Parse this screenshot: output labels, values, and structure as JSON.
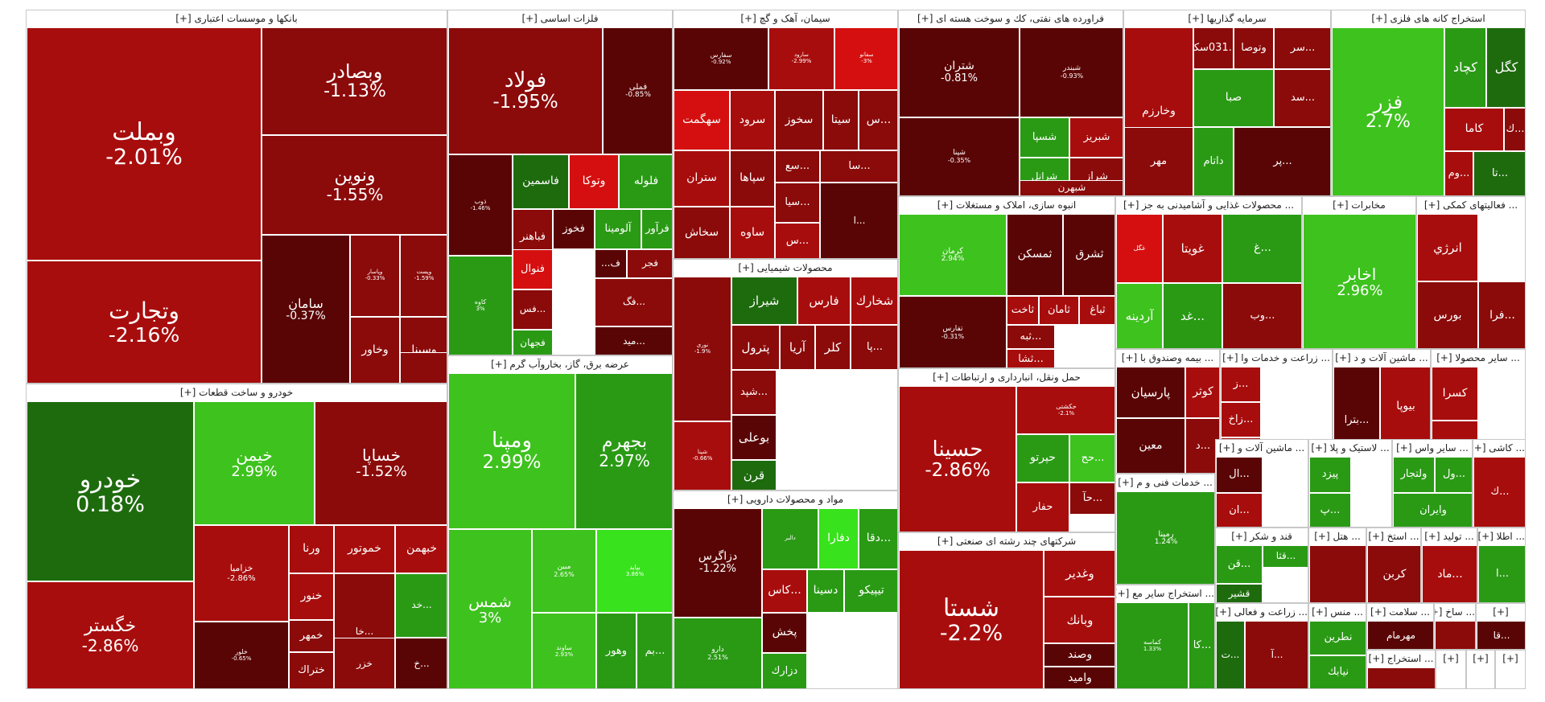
{
  "chart_data": {
    "type": "treemap",
    "colors": {
      "down_strong": "#8b0a0a",
      "down_mid": "#a80d0d",
      "down_dark": "#5a0505",
      "down_bright": "#d50f0f",
      "up_dark": "#1e6b0e",
      "up_mid": "#2a9a15",
      "up_bright": "#3ec21e",
      "up_neon": "#38e21c"
    },
    "sectors": [
      {
        "name": "بانکها و موسسات اعتباری [+]",
        "tiles": [
          {
            "symbol": "وبملت",
            "change": "-2.01%"
          },
          {
            "symbol": "وتجارت",
            "change": "-2.16%"
          },
          {
            "symbol": "وبصادر",
            "change": "-1.13%"
          },
          {
            "symbol": "ونوين",
            "change": "-1.55%"
          },
          {
            "symbol": "سامان",
            "change": "-0.37%"
          },
          {
            "symbol": "وپاسار",
            "change": "-0.33%"
          },
          {
            "symbol": "وپست",
            "change": "-1.59%"
          },
          {
            "symbol": "وخاور",
            "change": ""
          },
          {
            "symbol": "وسينا",
            "change": ""
          },
          {
            "symbol": "",
            "change": ""
          }
        ]
      },
      {
        "name": "فلزات اساسی [+]",
        "tiles": [
          {
            "symbol": "فولاد",
            "change": "-1.95%"
          },
          {
            "symbol": "فملی",
            "change": "-0.85%"
          },
          {
            "symbol": "ذوب",
            "change": "-1.46%"
          },
          {
            "symbol": "فاسمين",
            "change": ""
          },
          {
            "symbol": "وتوكا",
            "change": ""
          },
          {
            "symbol": "فلوله",
            "change": ""
          },
          {
            "symbol": "فخوز",
            "change": ""
          },
          {
            "symbol": "آلومينا",
            "change": ""
          },
          {
            "symbol": "فرآور",
            "change": ""
          },
          {
            "symbol": "فباهنر",
            "change": ""
          },
          {
            "symbol": "فنوال",
            "change": ""
          },
          {
            "symbol": "ف...",
            "change": ""
          },
          {
            "symbol": "فجر",
            "change": ""
          },
          {
            "symbol": "كاوه",
            "change": "3%"
          },
          {
            "symbol": "...فس",
            "change": ""
          },
          {
            "symbol": "...فگ",
            "change": ""
          },
          {
            "symbol": "فجهان",
            "change": ""
          },
          {
            "symbol": "...ميد",
            "change": ""
          }
        ]
      },
      {
        "name": "سیمان، آهک و گچ [+]",
        "tiles": [
          {
            "symbol": "سفارس",
            "change": "-0.92%"
          },
          {
            "symbol": "سارود",
            "change": "-2.99%"
          },
          {
            "symbol": "سفانو",
            "change": "-3%"
          },
          {
            "symbol": "سهگمت",
            "change": ""
          },
          {
            "symbol": "سرود",
            "change": ""
          },
          {
            "symbol": "سخوز",
            "change": ""
          },
          {
            "symbol": "سيتا",
            "change": ""
          },
          {
            "symbol": "...س",
            "change": ""
          },
          {
            "symbol": "ستران",
            "change": ""
          },
          {
            "symbol": "سپاها",
            "change": ""
          },
          {
            "symbol": "...سع",
            "change": ""
          },
          {
            "symbol": "...سا",
            "change": ""
          },
          {
            "symbol": "...سيا",
            "change": ""
          },
          {
            "symbol": "سخاش",
            "change": ""
          },
          {
            "symbol": "ساوه",
            "change": ""
          },
          {
            "symbol": "...س",
            "change": ""
          },
          {
            "symbol": "...ا",
            "change": ""
          }
        ]
      },
      {
        "name": "فراورده های نفتی، كك و سوخت هسته ای [+]",
        "tiles": [
          {
            "symbol": "شتران",
            "change": "-0.81%"
          },
          {
            "symbol": "شبندر",
            "change": "-0.93%"
          },
          {
            "symbol": "شپنا",
            "change": "-0.35%"
          },
          {
            "symbol": "شسپا",
            "change": ""
          },
          {
            "symbol": "شبريز",
            "change": ""
          },
          {
            "symbol": "شراز",
            "change": ""
          },
          {
            "symbol": "شرانل",
            "change": ""
          },
          {
            "symbol": "شبهرن",
            "change": ""
          }
        ]
      },
      {
        "name": "سرمایه گذاریها [+]",
        "tiles": [
          {
            "symbol": "وخارزم",
            "change": ""
          },
          {
            "symbol": "...031سكه",
            "change": ""
          },
          {
            "symbol": "وتوصا",
            "change": ""
          },
          {
            "symbol": "...سر",
            "change": ""
          },
          {
            "symbol": "صبا",
            "change": ""
          },
          {
            "symbol": "...سد",
            "change": ""
          },
          {
            "symbol": "مهر",
            "change": ""
          },
          {
            "symbol": "داتام",
            "change": ""
          },
          {
            "symbol": "...پر",
            "change": ""
          }
        ]
      },
      {
        "name": "استخراج كانه های فلزی [+]",
        "tiles": [
          {
            "symbol": "فزر",
            "change": "2.7%"
          },
          {
            "symbol": "كچاد",
            "change": ""
          },
          {
            "symbol": "كگل",
            "change": ""
          },
          {
            "symbol": "كاما",
            "change": ""
          },
          {
            "symbol": "...ك",
            "change": ""
          },
          {
            "symbol": "...وم",
            "change": ""
          },
          {
            "symbol": "...تا",
            "change": ""
          }
        ]
      },
      {
        "name": "محصولات شیمیایی [+]",
        "tiles": [
          {
            "symbol": "نوری",
            "change": "-1.9%"
          },
          {
            "symbol": "شيراز",
            "change": ""
          },
          {
            "symbol": "فارس",
            "change": ""
          },
          {
            "symbol": "شخارك",
            "change": ""
          },
          {
            "symbol": "پترول",
            "change": ""
          },
          {
            "symbol": "آريا",
            "change": ""
          },
          {
            "symbol": "كلر",
            "change": ""
          },
          {
            "symbol": "...پا",
            "change": ""
          },
          {
            "symbol": "شپنا",
            "change": "-0.66%"
          },
          {
            "symbol": "...شپد",
            "change": ""
          },
          {
            "symbol": "بوعلی",
            "change": ""
          },
          {
            "symbol": "پاكشو",
            "change": ""
          },
          {
            "symbol": "قرن",
            "change": ""
          }
        ]
      },
      {
        "name": "مواد و محصولات دارویی [+]",
        "tiles": [
          {
            "symbol": "دزاگرس",
            "change": "-1.22%"
          },
          {
            "symbol": "دالبر",
            "change": ""
          },
          {
            "symbol": "دفارا",
            "change": ""
          },
          {
            "symbol": "...دقا",
            "change": ""
          },
          {
            "symbol": "...كاس",
            "change": ""
          },
          {
            "symbol": "دسينا",
            "change": ""
          },
          {
            "symbol": "تيپيكو",
            "change": ""
          },
          {
            "symbol": "پخش",
            "change": ""
          },
          {
            "symbol": "دارو",
            "change": "2.51%"
          },
          {
            "symbol": "دزارك",
            "change": ""
          }
        ]
      },
      {
        "name": "انبوه سازی، املاک و مستغلات [+]",
        "tiles": [
          {
            "symbol": "كرمان",
            "change": "2.94%"
          },
          {
            "symbol": "ثمسكن",
            "change": ""
          },
          {
            "symbol": "ثشرق",
            "change": ""
          },
          {
            "symbol": "ثاخت",
            "change": ""
          },
          {
            "symbol": "ثامان",
            "change": ""
          },
          {
            "symbol": "ثباغ",
            "change": ""
          },
          {
            "symbol": "تفارس",
            "change": "-0.31%"
          },
          {
            "symbol": "...ثبه",
            "change": ""
          },
          {
            "symbol": "...ثشا",
            "change": ""
          }
        ]
      },
      {
        "name": "... محصولات غذایی و آشامیدنی به جز [+]",
        "tiles": [
          {
            "symbol": "غگل",
            "change": ""
          },
          {
            "symbol": "غويتا",
            "change": ""
          },
          {
            "symbol": "آردينه",
            "change": ""
          },
          {
            "symbol": "...غد",
            "change": ""
          },
          {
            "symbol": "...غ",
            "change": ""
          },
          {
            "symbol": "...وب",
            "change": ""
          }
        ]
      },
      {
        "name": "مخابرات [+]",
        "tiles": [
          {
            "symbol": "اخابر",
            "change": "2.96%"
          }
        ]
      },
      {
        "name": "... فعالیتهای كمكی [+]",
        "tiles": [
          {
            "symbol": "انرژي",
            "change": ""
          },
          {
            "symbol": "بورس",
            "change": ""
          },
          {
            "symbol": "...فرا",
            "change": ""
          }
        ]
      },
      {
        "name": "عرضه برق، گاز، بخاروآب گرم [+]",
        "tiles": [
          {
            "symbol": "ومپنا",
            "change": "2.99%"
          },
          {
            "symbol": "بجهرم",
            "change": "2.97%"
          },
          {
            "symbol": "شمس",
            "change": "3%"
          },
          {
            "symbol": "مبين",
            "change": "2.65%"
          },
          {
            "symbol": "بپاید",
            "change": "3.86%"
          },
          {
            "symbol": "وهور",
            "change": ""
          },
          {
            "symbol": "...بم",
            "change": ""
          },
          {
            "symbol": "ساوند",
            "change": "2.93%"
          }
        ]
      },
      {
        "name": "حمل ونقل، انبارداری و ارتباطات [+]",
        "tiles": [
          {
            "symbol": "حسينا",
            "change": "-2.86%"
          },
          {
            "symbol": "حكشتی",
            "change": "-2.1%"
          },
          {
            "symbol": "حپرتو",
            "change": ""
          },
          {
            "symbol": "...حح",
            "change": ""
          },
          {
            "symbol": "...حآ",
            "change": ""
          },
          {
            "symbol": "حفار",
            "change": ""
          }
        ]
      },
      {
        "name": "خودرو و ساخت قطعات [+]",
        "tiles": [
          {
            "symbol": "خودرو",
            "change": "0.18%"
          },
          {
            "symbol": "خگستر",
            "change": "-2.86%"
          },
          {
            "symbol": "خيمن",
            "change": "2.99%"
          },
          {
            "symbol": "خساپا",
            "change": "-1.52%"
          },
          {
            "symbol": "خزاميا",
            "change": "-2.86%"
          },
          {
            "symbol": "خلور",
            "change": "-0.65%"
          },
          {
            "symbol": "ورنا",
            "change": ""
          },
          {
            "symbol": "خموتور",
            "change": ""
          },
          {
            "symbol": "خبهمن",
            "change": ""
          },
          {
            "symbol": "خنور",
            "change": ""
          },
          {
            "symbol": "خمهر",
            "change": ""
          },
          {
            "symbol": "ختراك",
            "change": ""
          },
          {
            "symbol": "...خا",
            "change": ""
          },
          {
            "symbol": "...خد",
            "change": ""
          },
          {
            "symbol": "...خ",
            "change": ""
          },
          {
            "symbol": "خزر",
            "change": ""
          }
        ]
      },
      {
        "name": "شرکتهای چند رشته ای صنعتی [+]",
        "tiles": [
          {
            "symbol": "شستا",
            "change": "-2.2%"
          },
          {
            "symbol": "وغدير",
            "change": ""
          },
          {
            "symbol": "وبانك",
            "change": ""
          },
          {
            "symbol": "وصند",
            "change": ""
          },
          {
            "symbol": "واميد",
            "change": ""
          }
        ]
      },
      {
        "name": "... بیمه وصندوق با [+]",
        "tiles": [
          {
            "symbol": "پارسيان",
            "change": ""
          },
          {
            "symbol": "كوثر",
            "change": ""
          },
          {
            "symbol": "معين",
            "change": ""
          },
          {
            "symbol": "...د",
            "change": ""
          }
        ]
      },
      {
        "name": "... زراعت و خدمات وا [+]",
        "tiles": [
          {
            "symbol": "...ز",
            "change": ""
          },
          {
            "symbol": "...زاخ",
            "change": ""
          },
          {
            "symbol": "...ز",
            "change": ""
          }
        ]
      },
      {
        "name": "... ماشین آلات و د [+]",
        "tiles": [
          {
            "symbol": "...بترا",
            "change": ""
          },
          {
            "symbol": "بيوپا",
            "change": ""
          },
          {
            "symbol": "بكام",
            "change": ""
          }
        ]
      },
      {
        "name": "... سایر محصولا [+]",
        "tiles": [
          {
            "symbol": "كسرا",
            "change": ""
          },
          {
            "symbol": "كاذر",
            "change": ""
          }
        ]
      },
      {
        "name": "... خدمات فنی و م [+]",
        "tiles": [
          {
            "symbol": "رمپنا",
            "change": "1.24%"
          }
        ]
      },
      {
        "name": "... ماشین آلات و [+]",
        "tiles": [
          {
            "symbol": "...ال",
            "change": ""
          },
          {
            "symbol": "...ان",
            "change": ""
          }
        ]
      },
      {
        "name": "... لاستیک و پلا [+]",
        "tiles": [
          {
            "symbol": "پيزد",
            "change": ""
          },
          {
            "symbol": "...پ",
            "change": ""
          }
        ]
      },
      {
        "name": "... سایر واس [+]",
        "tiles": [
          {
            "symbol": "...ول",
            "change": ""
          },
          {
            "symbol": "وايران",
            "change": ""
          },
          {
            "symbol": "ولتجار",
            "change": ""
          }
        ]
      },
      {
        "name": "... كاشی [+]",
        "tiles": [
          {
            "symbol": "...ك",
            "change": ""
          }
        ]
      },
      {
        "name": "... استخراج سایر مع [+]",
        "tiles": [
          {
            "symbol": "كماسه",
            "change": "1.33%"
          },
          {
            "symbol": "...كا",
            "change": ""
          }
        ]
      },
      {
        "name": "قند و شكر [+]",
        "tiles": [
          {
            "symbol": "...قن",
            "change": ""
          },
          {
            "symbol": "...قثا",
            "change": ""
          },
          {
            "symbol": "قشير",
            "change": ""
          }
        ]
      },
      {
        "name": "... هتل [+]",
        "tiles": [
          {
            "symbol": "",
            "change": ""
          }
        ]
      },
      {
        "name": "... استخ [+]",
        "tiles": [
          {
            "symbol": "كربن",
            "change": ""
          }
        ]
      },
      {
        "name": "... تولید [+]",
        "tiles": [
          {
            "symbol": "...ماد",
            "change": ""
          }
        ]
      },
      {
        "name": "... اطلا [+]",
        "tiles": [
          {
            "symbol": "...ا",
            "change": ""
          }
        ]
      },
      {
        "name": "... منس [+]",
        "tiles": [
          {
            "symbol": "نطرين",
            "change": ""
          },
          {
            "symbol": "نيابك",
            "change": ""
          }
        ]
      },
      {
        "name": "... زراعت و فعالی [+]",
        "tiles": [
          {
            "symbol": "...ت",
            "change": ""
          },
          {
            "symbol": "...آ",
            "change": ""
          }
        ]
      },
      {
        "name": "... سلامت [+]",
        "tiles": [
          {
            "symbol": "مهرمام",
            "change": ""
          }
        ]
      },
      {
        "name": "... ساخ [+]",
        "tiles": [
          {
            "symbol": "",
            "change": ""
          }
        ]
      },
      {
        "name": "... استخراج [+]",
        "tiles": [
          {
            "symbol": "",
            "change": ""
          }
        ]
      },
      {
        "name": "[+]",
        "tiles": [
          {
            "symbol": "...قا",
            "change": ""
          }
        ]
      },
      {
        "name": "[+]",
        "tiles": []
      },
      {
        "name": "[+]",
        "tiles": []
      },
      {
        "name": "[+]",
        "tiles": []
      },
      {
        "name": "[+]",
        "tiles": []
      }
    ]
  }
}
